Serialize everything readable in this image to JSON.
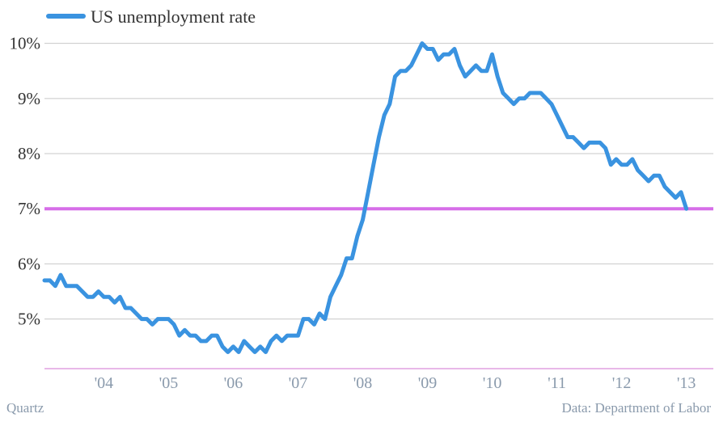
{
  "credit": "Quartz",
  "source": "Data: Department of Labor",
  "colors": {
    "series": "#3a93e0",
    "reference": "#d66ee8",
    "grid": "#c8c8c8",
    "axis": "#d070d0"
  },
  "chart_data": {
    "type": "line",
    "title": "",
    "xlabel": "",
    "ylabel": "",
    "legend_position": "top-left",
    "grid": true,
    "xlim": [
      2003.583,
      2013.917
    ],
    "ylim": [
      4.1,
      10.2
    ],
    "yticks": [
      {
        "value": 5,
        "label": "5%"
      },
      {
        "value": 6,
        "label": "6%"
      },
      {
        "value": 7,
        "label": "7%"
      },
      {
        "value": 8,
        "label": "8%"
      },
      {
        "value": 9,
        "label": "9%"
      },
      {
        "value": 10,
        "label": "10%"
      }
    ],
    "xticks": [
      {
        "value": 2004.5,
        "label": "'04"
      },
      {
        "value": 2005.5,
        "label": "'05"
      },
      {
        "value": 2006.5,
        "label": "'06"
      },
      {
        "value": 2007.5,
        "label": "'07"
      },
      {
        "value": 2008.5,
        "label": "'08"
      },
      {
        "value": 2009.5,
        "label": "'09"
      },
      {
        "value": 2010.5,
        "label": "'10"
      },
      {
        "value": 2011.5,
        "label": "'11"
      },
      {
        "value": 2012.5,
        "label": "'12"
      },
      {
        "value": 2013.5,
        "label": "'13"
      }
    ],
    "reference_line": {
      "value": 7
    },
    "series": [
      {
        "name": "US unemployment rate",
        "x_start": "2003-08",
        "x_end": "2013-11",
        "frequency": "monthly",
        "values": [
          5.7,
          5.7,
          5.6,
          5.8,
          5.6,
          5.6,
          5.6,
          5.5,
          5.4,
          5.4,
          5.5,
          5.4,
          5.4,
          5.3,
          5.4,
          5.2,
          5.2,
          5.1,
          5.0,
          5.0,
          4.9,
          5.0,
          5.0,
          5.0,
          4.9,
          4.7,
          4.8,
          4.7,
          4.7,
          4.6,
          4.6,
          4.7,
          4.7,
          4.5,
          4.4,
          4.5,
          4.4,
          4.6,
          4.5,
          4.4,
          4.5,
          4.4,
          4.6,
          4.7,
          4.6,
          4.7,
          4.7,
          4.7,
          5.0,
          5.0,
          4.9,
          5.1,
          5.0,
          5.4,
          5.6,
          5.8,
          6.1,
          6.1,
          6.5,
          6.8,
          7.3,
          7.8,
          8.3,
          8.7,
          8.9,
          9.4,
          9.5,
          9.5,
          9.6,
          9.8,
          10.0,
          9.9,
          9.9,
          9.7,
          9.8,
          9.8,
          9.9,
          9.6,
          9.4,
          9.5,
          9.6,
          9.5,
          9.5,
          9.8,
          9.4,
          9.1,
          9.0,
          8.9,
          9.0,
          9.0,
          9.1,
          9.1,
          9.1,
          9.0,
          8.9,
          8.7,
          8.5,
          8.3,
          8.3,
          8.2,
          8.1,
          8.2,
          8.2,
          8.2,
          8.1,
          7.8,
          7.9,
          7.8,
          7.8,
          7.9,
          7.7,
          7.6,
          7.5,
          7.6,
          7.6,
          7.4,
          7.3,
          7.2,
          7.3,
          7.0
        ]
      }
    ]
  }
}
